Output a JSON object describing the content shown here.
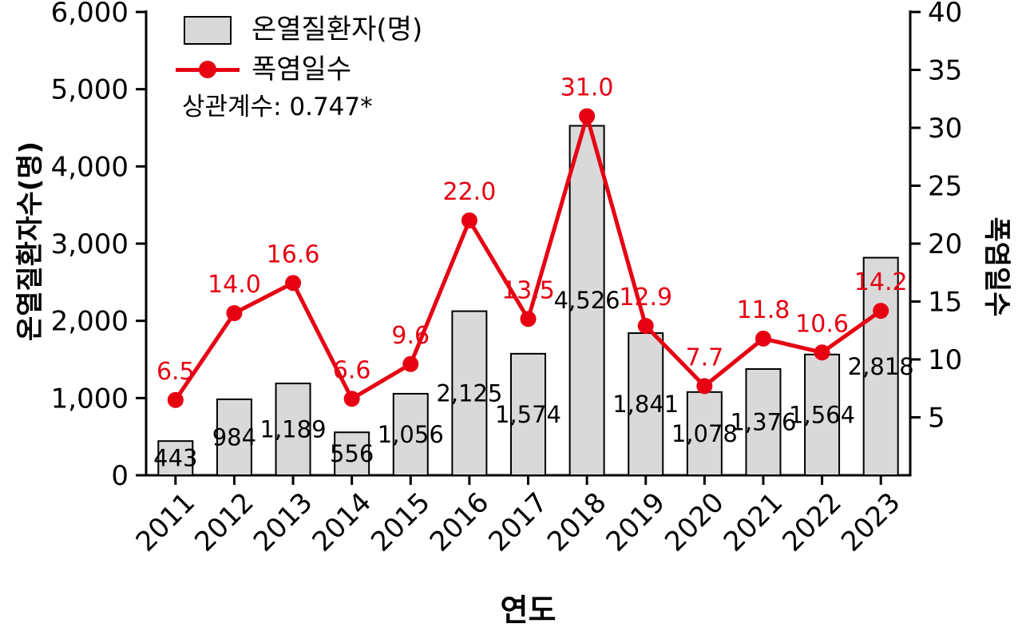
{
  "chart_data": {
    "type": "bar",
    "subtype": "bar+line dual axis",
    "categories": [
      "2011",
      "2012",
      "2013",
      "2014",
      "2015",
      "2016",
      "2017",
      "2018",
      "2019",
      "2020",
      "2021",
      "2022",
      "2023"
    ],
    "series": [
      {
        "name": "온열질환자(명)",
        "type": "bar",
        "axis": "left",
        "values": [
          443,
          984,
          1189,
          556,
          1056,
          2125,
          1574,
          4526,
          1841,
          1078,
          1376,
          1564,
          2818
        ],
        "value_labels": [
          "443",
          "984",
          "1,189",
          "556",
          "1,056",
          "2,125",
          "1,574",
          "4,526",
          "1,841",
          "1,078",
          "1,376",
          "1,564",
          "2,818"
        ],
        "fill_color": "#d9d9d9",
        "border_color": "#000000"
      },
      {
        "name": "폭염일수",
        "type": "line",
        "axis": "right",
        "values": [
          6.5,
          14.0,
          16.6,
          6.6,
          9.6,
          22.0,
          13.5,
          31.0,
          12.9,
          7.7,
          11.8,
          10.6,
          14.2
        ],
        "value_labels": [
          "6.5",
          "14.0",
          "16.6",
          "6.6",
          "9.6",
          "22.0",
          "13.5",
          "31.0",
          "12.9",
          "7.7",
          "11.8",
          "10.6",
          "14.2"
        ],
        "color": "#e60012"
      }
    ],
    "left_axis": {
      "label": "온열질환자수(명)",
      "min": 0,
      "max": 6000,
      "tick_step": 1000,
      "tick_labels": [
        "0",
        "1,000",
        "2,000",
        "3,000",
        "4,000",
        "5,000",
        "6,000"
      ]
    },
    "right_axis": {
      "label": "폭염일수",
      "min": 0,
      "max": 40,
      "tick_step": 5,
      "tick_values": [
        5,
        10,
        15,
        20,
        25,
        30,
        35,
        40
      ],
      "tick_labels": [
        "5",
        "10",
        "15",
        "20",
        "25",
        "30",
        "35",
        "40"
      ]
    },
    "x_axis": {
      "label": "연도"
    },
    "legend": {
      "position": "top-left",
      "items": [
        "온열질환자(명)",
        "폭염일수"
      ]
    },
    "annotation": "상관계수: 0.747*",
    "grid": false,
    "colors": {
      "bar_fill": "#d9d9d9",
      "bar_border": "#000000",
      "line": "#e60012",
      "axis": "#000000",
      "text": "#000000"
    }
  }
}
